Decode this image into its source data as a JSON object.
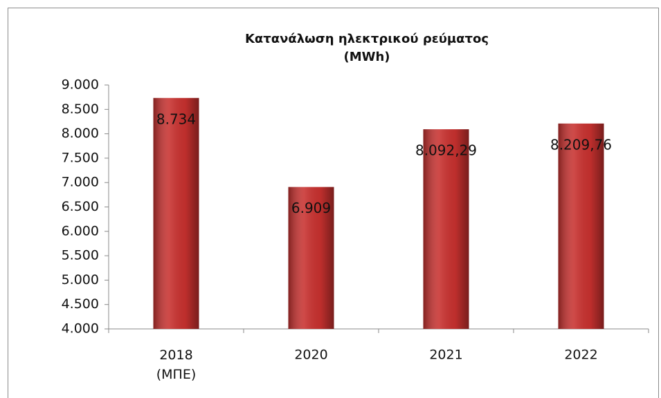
{
  "chart_data": {
    "type": "bar",
    "title": "Κατανάλωση ηλεκτρικού ρεύματος\n(MWh)",
    "categories": [
      "2018\n(ΜΠΕ)",
      "2020",
      "2021",
      "2022"
    ],
    "values": [
      8734,
      6909,
      8092.29,
      8209.76
    ],
    "value_labels": [
      "8.734",
      "6.909",
      "8.092,29",
      "8.209,76"
    ],
    "color": "#c8312f",
    "ylim": [
      4000,
      9000
    ],
    "yticks": [
      {
        "value": 4000,
        "label": "4.000"
      },
      {
        "value": 4500,
        "label": "4.500"
      },
      {
        "value": 5000,
        "label": "5.000"
      },
      {
        "value": 5500,
        "label": "5.500"
      },
      {
        "value": 6000,
        "label": "6.000"
      },
      {
        "value": 6500,
        "label": "6.500"
      },
      {
        "value": 7000,
        "label": "7.000"
      },
      {
        "value": 7500,
        "label": "7.500"
      },
      {
        "value": 8000,
        "label": "8.000"
      },
      {
        "value": 8500,
        "label": "8.500"
      },
      {
        "value": 9000,
        "label": "9.000"
      }
    ],
    "grid": false
  }
}
